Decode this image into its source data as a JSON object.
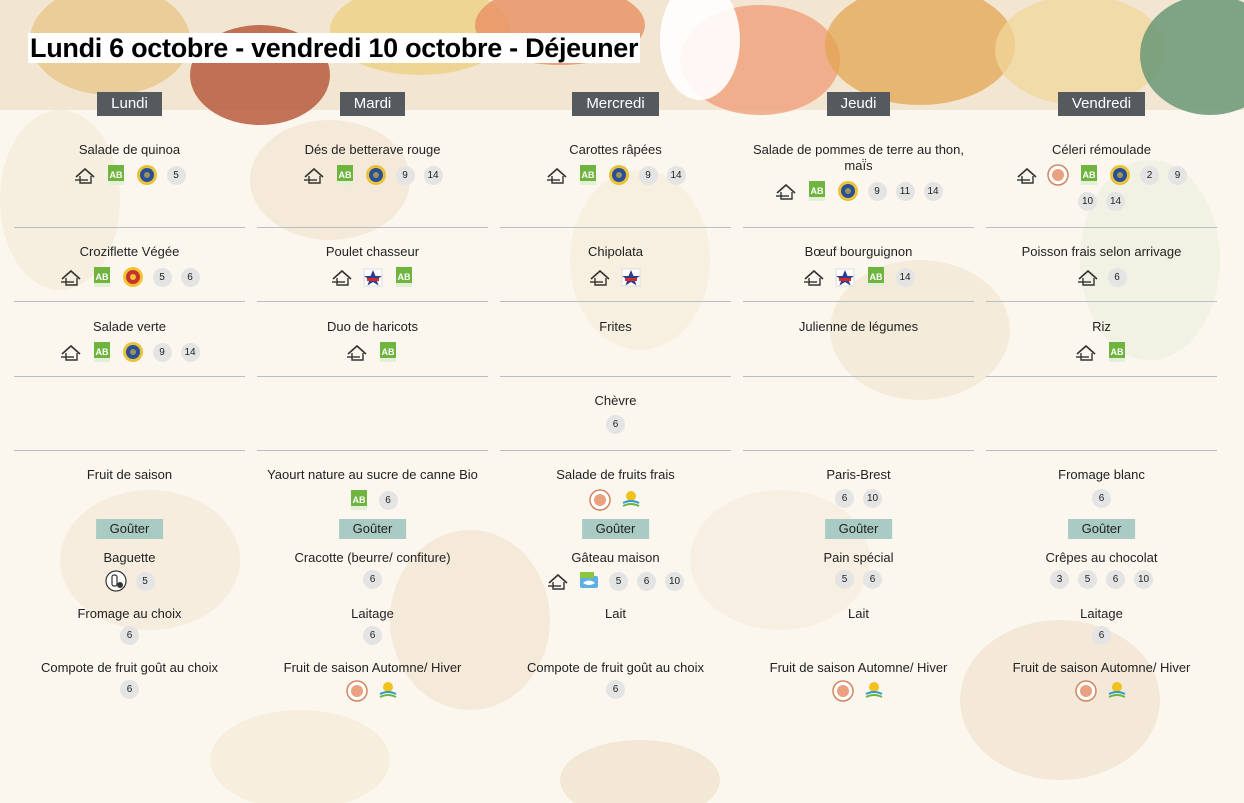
{
  "title": "Lundi 6 octobre - vendredi 10 octobre  - Déjeuner",
  "gouter_label": "Goûter",
  "colors": {
    "day_header_bg": "#555a5e",
    "gouter_bg": "#a9cbc3",
    "separator": "#b9bec4",
    "bio_green": "#6fb43f"
  },
  "days": [
    {
      "name": "Lundi",
      "dejeuner": [
        {
          "dish": "Salade de quinoa",
          "labels": [
            "fait-maison-icon",
            "bio-icon",
            "label-rouge-icon"
          ],
          "allergens": [
            "5"
          ]
        },
        {
          "dish": "Croziflette Végée",
          "labels": [
            "fait-maison-icon",
            "bio-icon",
            "aop-icon"
          ],
          "allergens": [
            "5",
            "6"
          ]
        },
        {
          "dish": "Salade verte",
          "labels": [
            "fait-maison-icon",
            "bio-icon",
            "label-rouge-icon"
          ],
          "allergens": [
            "9",
            "14"
          ]
        },
        {
          "dish": "",
          "labels": [],
          "allergens": []
        },
        {
          "dish": "Fruit de saison",
          "labels": [],
          "allergens": []
        }
      ],
      "gouter": [
        {
          "dish": "Baguette",
          "labels": [
            "boulanger-icon"
          ],
          "allergens": [
            "5"
          ]
        },
        {
          "dish": "Fromage au choix",
          "labels": [],
          "allergens": [
            "6"
          ]
        },
        {
          "dish": "Compote de fruit goût au choix",
          "labels": [],
          "allergens": [
            "6"
          ]
        }
      ]
    },
    {
      "name": "Mardi",
      "dejeuner": [
        {
          "dish": "Dés de betterave rouge",
          "labels": [
            "fait-maison-icon",
            "bio-icon",
            "label-rouge-icon"
          ],
          "allergens": [
            "9",
            "14"
          ]
        },
        {
          "dish": "Poulet chasseur",
          "labels": [
            "fait-maison-icon",
            "france-icon",
            "bio-icon"
          ],
          "allergens": []
        },
        {
          "dish": "Duo de haricots",
          "labels": [
            "fait-maison-icon",
            "bio-icon"
          ],
          "allergens": []
        },
        {
          "dish": "",
          "labels": [],
          "allergens": []
        },
        {
          "dish": "Yaourt nature au sucre de canne Bio",
          "labels": [
            "bio-icon"
          ],
          "allergens": [
            "6"
          ]
        }
      ],
      "gouter": [
        {
          "dish": "Cracotte (beurre/ confiture)",
          "labels": [],
          "allergens": [
            "6"
          ]
        },
        {
          "dish": "Laitage",
          "labels": [],
          "allergens": [
            "6"
          ]
        },
        {
          "dish": "Fruit de saison Automne/ Hiver",
          "labels": [
            "local-icon",
            "hve-icon"
          ],
          "allergens": []
        }
      ]
    },
    {
      "name": "Mercredi",
      "dejeuner": [
        {
          "dish": "Carottes râpées",
          "labels": [
            "fait-maison-icon",
            "bio-icon",
            "label-rouge-icon"
          ],
          "allergens": [
            "9",
            "14"
          ]
        },
        {
          "dish": "Chipolata",
          "labels": [
            "fait-maison-icon",
            "france-icon"
          ],
          "allergens": []
        },
        {
          "dish": "Frites",
          "labels": [],
          "allergens": []
        },
        {
          "dish": "Chèvre",
          "labels": [],
          "allergens": [
            "6"
          ]
        },
        {
          "dish": "Salade de fruits frais",
          "labels": [
            "local-icon",
            "hve-icon"
          ],
          "allergens": []
        }
      ],
      "gouter": [
        {
          "dish": "Gâteau maison",
          "labels": [
            "fait-maison-icon",
            "peche-durable-icon"
          ],
          "allergens": [
            "5",
            "6",
            "10"
          ]
        },
        {
          "dish": "Lait",
          "labels": [],
          "allergens": []
        },
        {
          "dish": "Compote de fruit goût au choix",
          "labels": [],
          "allergens": [
            "6"
          ]
        }
      ]
    },
    {
      "name": "Jeudi",
      "dejeuner": [
        {
          "dish": "Salade de pommes de terre au thon, maï̈s",
          "labels": [
            "fait-maison-icon",
            "bio-icon",
            "label-rouge-icon"
          ],
          "allergens": [
            "9",
            "11",
            "14"
          ]
        },
        {
          "dish": "Bœuf bourguignon",
          "labels": [
            "fait-maison-icon",
            "france-icon",
            "bio-icon"
          ],
          "allergens": [
            "14"
          ]
        },
        {
          "dish": "Julienne de légumes",
          "labels": [],
          "allergens": []
        },
        {
          "dish": "",
          "labels": [],
          "allergens": []
        },
        {
          "dish": "Paris-Brest",
          "labels": [],
          "allergens": [
            "6",
            "10"
          ]
        }
      ],
      "gouter": [
        {
          "dish": "Pain spécial",
          "labels": [],
          "allergens": [
            "5",
            "6"
          ]
        },
        {
          "dish": "Lait",
          "labels": [],
          "allergens": []
        },
        {
          "dish": "Fruit de saison Automne/ Hiver",
          "labels": [
            "local-icon",
            "hve-icon"
          ],
          "allergens": []
        }
      ]
    },
    {
      "name": "Vendredi",
      "dejeuner": [
        {
          "dish": "Céleri  rémoulade",
          "labels": [
            "fait-maison-icon",
            "local-icon",
            "bio-icon",
            "label-rouge-icon"
          ],
          "allergens": [
            "2",
            "9",
            "10",
            "14"
          ]
        },
        {
          "dish": "Poisson frais selon arrivage",
          "labels": [
            "fait-maison-icon"
          ],
          "allergens": [
            "6"
          ]
        },
        {
          "dish": "Riz",
          "labels": [
            "fait-maison-icon",
            "bio-icon"
          ],
          "allergens": []
        },
        {
          "dish": "",
          "labels": [],
          "allergens": []
        },
        {
          "dish": "Fromage blanc",
          "labels": [],
          "allergens": [
            "6"
          ]
        }
      ],
      "gouter": [
        {
          "dish": "Crêpes au chocolat",
          "labels": [],
          "allergens": [
            "3",
            "5",
            "6",
            "10"
          ]
        },
        {
          "dish": "Laitage",
          "labels": [],
          "allergens": [
            "6"
          ]
        },
        {
          "dish": "Fruit de saison Automne/ Hiver",
          "labels": [
            "local-icon",
            "hve-icon"
          ],
          "allergens": []
        }
      ]
    }
  ]
}
